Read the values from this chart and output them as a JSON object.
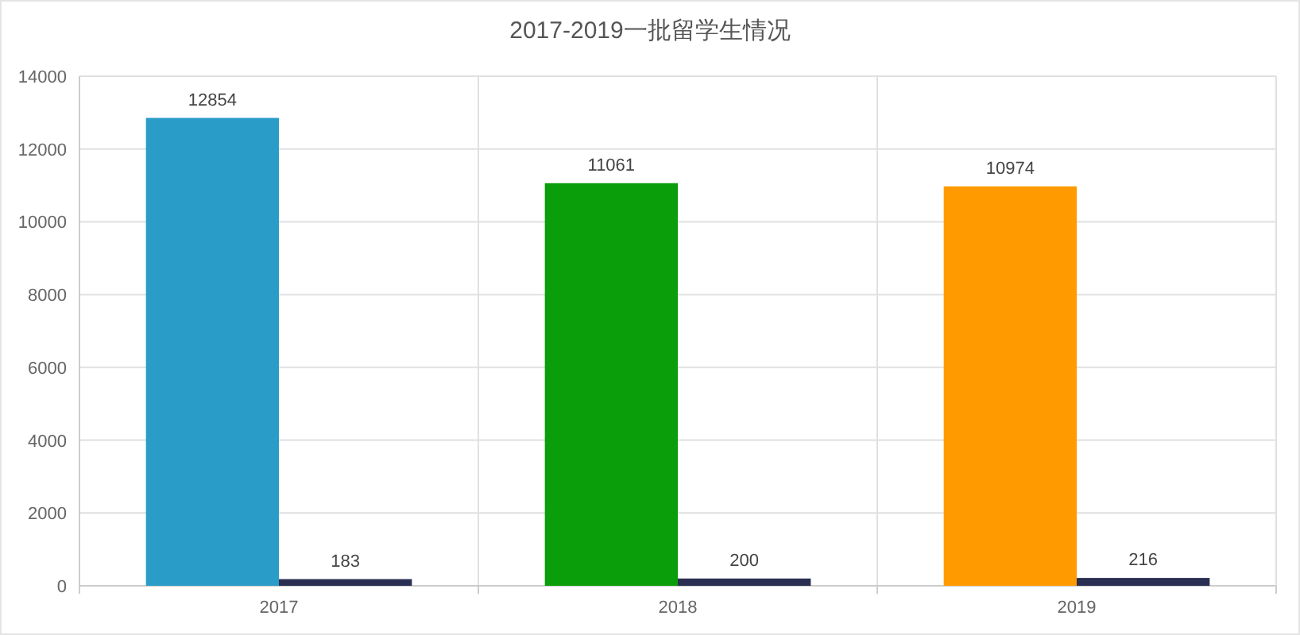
{
  "chart_data": {
    "type": "bar",
    "title": "2017-2019一批留学生情况",
    "categories": [
      "2017",
      "2018",
      "2019"
    ],
    "series": [
      {
        "colors": [
          "#2a9cc8",
          "#0a9e0a",
          "#ff9a00"
        ],
        "values": [
          12854,
          11061,
          10974
        ]
      },
      {
        "color": "#2a2e52",
        "values": [
          183,
          200,
          216
        ]
      }
    ],
    "ylim": [
      0,
      14000
    ],
    "yticks": [
      0,
      2000,
      4000,
      6000,
      8000,
      10000,
      12000,
      14000
    ],
    "grid": true,
    "data_labels": true
  }
}
